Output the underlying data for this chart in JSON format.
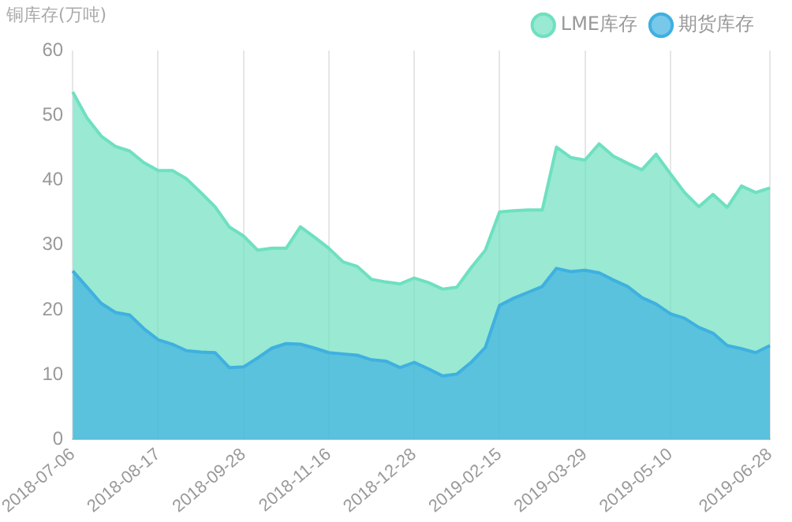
{
  "chart_data": {
    "type": "area",
    "ylabel": "铜库存(万吨)",
    "categories": [
      "2018-07-06",
      null,
      null,
      null,
      null,
      null,
      "2018-08-17",
      null,
      null,
      null,
      null,
      null,
      "2018-09-28",
      null,
      null,
      null,
      null,
      null,
      "2018-11-16",
      null,
      null,
      null,
      null,
      null,
      "2018-12-28",
      null,
      null,
      null,
      null,
      null,
      "2019-02-15",
      null,
      null,
      null,
      null,
      null,
      "2019-03-29",
      null,
      null,
      null,
      null,
      null,
      "2019-05-10",
      null,
      null,
      null,
      null,
      null,
      null,
      "2019-06-28"
    ],
    "series": [
      {
        "name": "LME库存",
        "color": "#6ee0c0",
        "values": [
          53.6,
          49.6,
          46.8,
          45.2,
          44.5,
          42.7,
          41.5,
          41.5,
          40.2,
          38.1,
          35.9,
          32.8,
          31.4,
          29.2,
          29.5,
          29.5,
          32.8,
          31.2,
          29.5,
          27.4,
          26.7,
          24.7,
          24.3,
          24.0,
          24.9,
          24.2,
          23.2,
          23.5,
          26.5,
          29.2,
          35.1,
          35.3,
          35.4,
          35.4,
          45.1,
          43.5,
          43.1,
          45.6,
          43.7,
          42.6,
          41.6,
          44.0,
          41.0,
          38.1,
          35.9,
          37.8,
          35.8,
          39.1,
          38.1,
          38.8
        ]
      },
      {
        "name": "期货库存",
        "color": "#3fb0e0",
        "values": [
          26.0,
          23.5,
          21.0,
          19.6,
          19.2,
          17.1,
          15.4,
          14.7,
          13.7,
          13.5,
          13.4,
          11.1,
          11.2,
          12.6,
          14.1,
          14.8,
          14.7,
          14.1,
          13.4,
          13.2,
          13.0,
          12.3,
          12.1,
          11.1,
          11.9,
          10.9,
          9.8,
          10.1,
          11.9,
          14.2,
          20.7,
          21.8,
          22.7,
          23.6,
          26.4,
          25.9,
          26.1,
          25.7,
          24.6,
          23.6,
          21.9,
          20.9,
          19.4,
          18.7,
          17.3,
          16.4,
          14.5,
          14.0,
          13.4,
          14.5
        ]
      }
    ],
    "ylim": [
      0,
      60
    ],
    "yticks": [
      0,
      10,
      20,
      30,
      40,
      50,
      60
    ],
    "grid": "x",
    "legend": "top right",
    "marker": "none"
  }
}
